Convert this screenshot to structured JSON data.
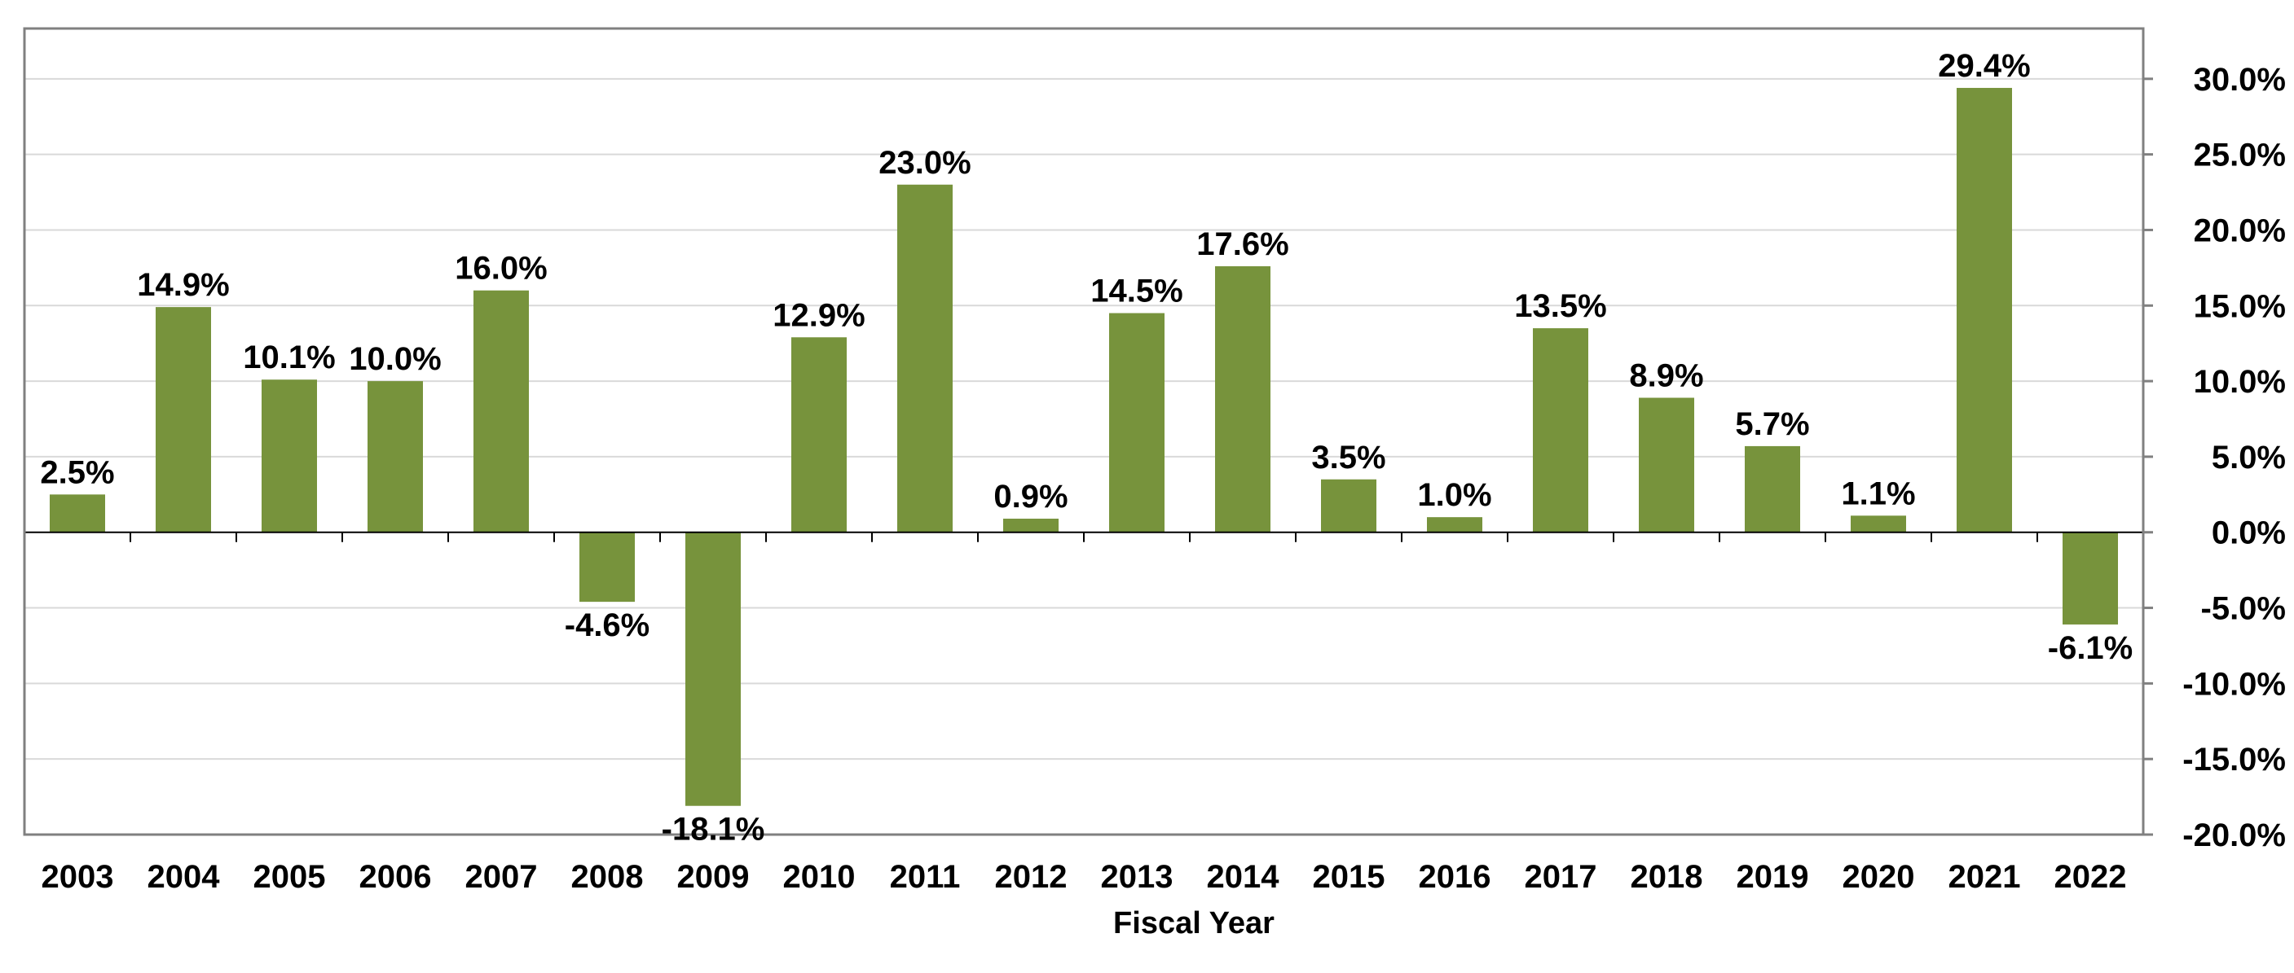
{
  "chart_data": {
    "type": "bar",
    "title": "",
    "xlabel": "Fiscal Year",
    "ylabel": "",
    "categories": [
      "2003",
      "2004",
      "2005",
      "2006",
      "2007",
      "2008",
      "2009",
      "2010",
      "2011",
      "2012",
      "2013",
      "2014",
      "2015",
      "2016",
      "2017",
      "2018",
      "2019",
      "2020",
      "2021",
      "2022"
    ],
    "values": [
      2.5,
      14.9,
      10.1,
      10.0,
      16.0,
      -4.6,
      -18.1,
      12.9,
      23.0,
      0.9,
      14.5,
      17.6,
      3.5,
      1.0,
      13.5,
      8.9,
      5.7,
      1.1,
      29.4,
      -6.1
    ],
    "value_labels": [
      "2.5%",
      "14.9%",
      "10.1%",
      "10.0%",
      "16.0%",
      "-4.6%",
      "-18.1%",
      "12.9%",
      "23.0%",
      "0.9%",
      "14.5%",
      "17.6%",
      "3.5%",
      "1.0%",
      "13.5%",
      "8.9%",
      "5.7%",
      "1.1%",
      "29.4%",
      "-6.1%"
    ],
    "ylim": [
      -20,
      33.33
    ],
    "y_ticks": [
      30,
      25,
      20,
      15,
      10,
      5,
      0,
      -5,
      -10,
      -15,
      -20
    ],
    "y_tick_labels": [
      "30.0%",
      "25.0%",
      "20.0%",
      "15.0%",
      "10.0%",
      "5.0%",
      "0.0%",
      "-5.0%",
      "-10.0%",
      "-15.0%",
      "-20.0%"
    ],
    "y_axis_side": "right",
    "grid": true,
    "legend": "none",
    "bar_color": "#77933c",
    "grid_color": "#d9d9d9",
    "frame_color": "#808080"
  }
}
